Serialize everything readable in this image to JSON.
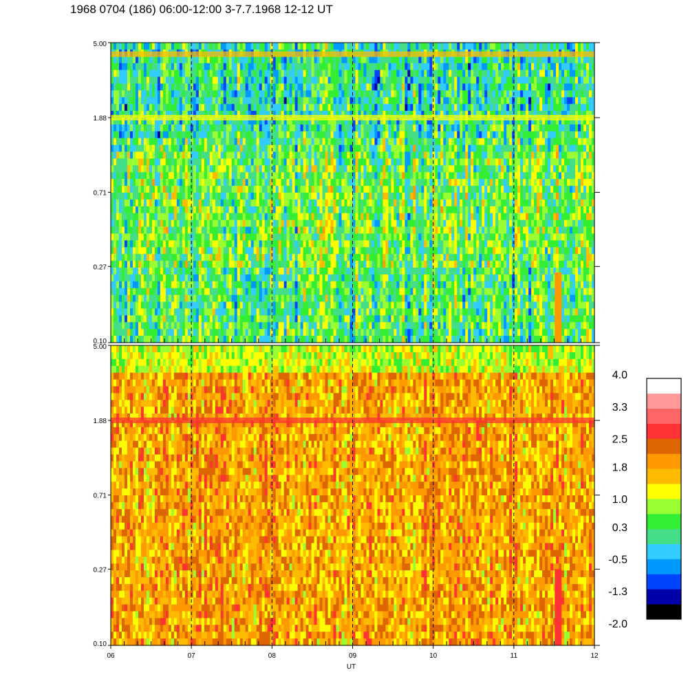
{
  "title": "1968 0704 (186) 06:00-12:00 3-7.7.1968  12-12 UT",
  "chart_data": {
    "type": "heatmap",
    "title": "1968 0704 (186) 06:00-12:00 3-7.7.1968  12-12 UT",
    "xlabel": "UT",
    "x_range": [
      "06",
      "12"
    ],
    "x_ticks": [
      "06",
      "07",
      "08",
      "09",
      "10",
      "11",
      "12"
    ],
    "x_unit_ticks": 6,
    "dashed_hour_lines": [
      "07",
      "08",
      "09",
      "10",
      "11"
    ],
    "panels": [
      {
        "name": "",
        "y_ticks": [
          "5.00",
          "1.88",
          "0.71",
          "0.27",
          "0.10"
        ],
        "y_range": [
          0.1,
          5.0
        ],
        "y_scale": "log",
        "dominant_levels": [
          0.3,
          1.0,
          -0.5
        ],
        "features": [
          {
            "type": "band",
            "y": 4.3,
            "level": 1.4
          },
          {
            "type": "band",
            "y": 1.88,
            "level": 1.0
          },
          {
            "type": "vertical",
            "x": 11.55,
            "y_from": 0.1,
            "y_to": 0.25,
            "level": 2.0
          }
        ]
      },
      {
        "name": "",
        "y_ticks": [
          "5.00",
          "1.88",
          "0.71",
          "0.27",
          "0.10"
        ],
        "y_range": [
          0.1,
          5.0
        ],
        "y_scale": "log",
        "dominant_levels": [
          1.8,
          2.5,
          1.0
        ],
        "features": [
          {
            "type": "band",
            "y": 1.88,
            "level": 2.5
          },
          {
            "type": "vertical",
            "x": 11.55,
            "y_from": 0.1,
            "y_to": 0.27,
            "level": 2.8
          }
        ]
      }
    ],
    "colorbar": {
      "ticks": [
        "4.0",
        "3.3",
        "2.5",
        "1.8",
        "1.0",
        "0.3",
        "-0.5",
        "-1.3",
        "-2.0"
      ],
      "range": [
        -2.0,
        4.0
      ],
      "colors": [
        "#000000",
        "#0000aa",
        "#0044ff",
        "#0099ff",
        "#33ccff",
        "#44dd88",
        "#33ee33",
        "#99ff33",
        "#ffff00",
        "#ffbb00",
        "#ff9900",
        "#dd6600",
        "#ff3333",
        "#ff6666",
        "#ff9999",
        "#ffffff"
      ]
    }
  }
}
